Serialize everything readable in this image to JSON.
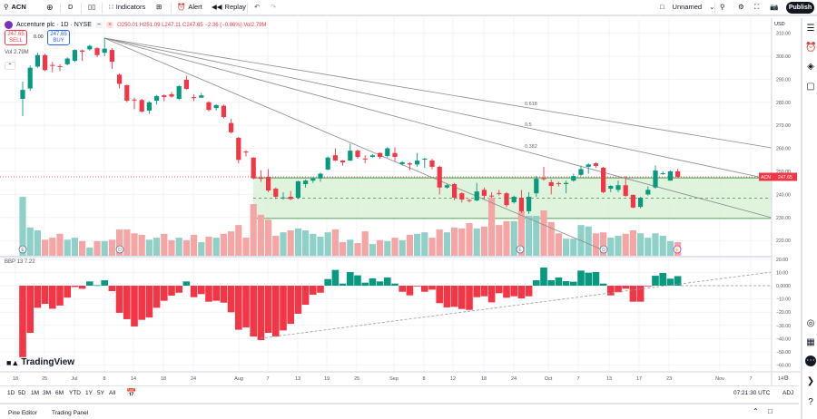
{
  "toolbar": {
    "symbol": "ACN",
    "interval": "D",
    "indicators_label": "Indicators",
    "alert_label": "Alert",
    "replay_label": "Replay",
    "layout_name": "Unnamed",
    "publish_label": "Publish"
  },
  "legend": {
    "title": "Accenture plc · 1D · NYSE",
    "ohlc": "O250.01 H251.09 L247.11 C247.65 −2.36 (−0.86%) Vol2.79M",
    "sell_price": "247.65",
    "sell_label": "SELL",
    "buy_price": "247.65",
    "buy_label": "BUY",
    "spread": "0.00",
    "volume_label": "Vol  2.79M",
    "bbp_label": "BBP 13  7.22"
  },
  "price_scale": {
    "currency": "USD",
    "labels": [
      "310.00",
      "300.00",
      "290.00",
      "280.00",
      "270.00",
      "260.00",
      "250.00",
      "240.00",
      "230.00",
      "220.00"
    ],
    "last_price_symbol": "ACN",
    "last_price": "247.65"
  },
  "bbp_scale": {
    "labels": [
      "20.00",
      "10.00",
      "0.0000",
      "−10.00",
      "−20.00",
      "−30.00",
      "−40.00",
      "−50.00",
      "−60.00"
    ]
  },
  "x_axis": {
    "labels": [
      "18",
      "25",
      "Jul",
      "8",
      "14",
      "18",
      "24",
      "Aug",
      "7",
      "13",
      "19",
      "25",
      "Sep",
      "8",
      "12",
      "18",
      "24",
      "Oct",
      "7",
      "13",
      "17",
      "23",
      "Nov",
      "7",
      "14"
    ]
  },
  "fib_fan": {
    "levels": [
      "0.618",
      "0.5",
      "0.382"
    ]
  },
  "events": [
    "E",
    "D",
    "E",
    "D",
    "⚡"
  ],
  "colors": {
    "up": "#089981",
    "down": "#f23645",
    "volume_up": "#8fd0c8",
    "volume_down": "#f5a6a4",
    "zone": "#d7f0d5",
    "zone_line": "#6aa86a"
  },
  "chart_data": {
    "type": "candlestick",
    "title": "Accenture plc · 1D · NYSE",
    "ylim": [
      215,
      312
    ],
    "candles_ohlc": [
      [
        281.5,
        289,
        274,
        285.4
      ],
      [
        286,
        296,
        285,
        295
      ],
      [
        295.5,
        301.5,
        295,
        300.5
      ],
      [
        300.5,
        301,
        293.5,
        294
      ],
      [
        296.2,
        297.5,
        293,
        295.8
      ],
      [
        295.7,
        296.5,
        293.5,
        295.3
      ],
      [
        296.5,
        299.5,
        296,
        299
      ],
      [
        298,
        303,
        297.5,
        302.7
      ],
      [
        302.5,
        302.8,
        298,
        302
      ],
      [
        303,
        305,
        302.5,
        304.5
      ],
      [
        303.5,
        304,
        299.5,
        300.5
      ],
      [
        301.5,
        308,
        300,
        303.3
      ],
      [
        302.7,
        303.5,
        294.5,
        297.6
      ],
      [
        292,
        292.5,
        286,
        288
      ],
      [
        287.4,
        287.8,
        280,
        280.7
      ],
      [
        281.2,
        282,
        277,
        280.8
      ],
      [
        281,
        281.5,
        275.5,
        276
      ],
      [
        276.4,
        280.5,
        275,
        280
      ],
      [
        280.7,
        283.2,
        279,
        282.7
      ],
      [
        283,
        283.5,
        280.5,
        282.3
      ],
      [
        283.5,
        284.5,
        282,
        282.5
      ],
      [
        281.5,
        287.5,
        281,
        287
      ],
      [
        289.8,
        291.5,
        285.5,
        285.8
      ],
      [
        282.2,
        283.5,
        280.5,
        282
      ],
      [
        282,
        284,
        282,
        283
      ],
      [
        280,
        280.5,
        276,
        276.7
      ],
      [
        277.5,
        279.2,
        276.5,
        278.8
      ],
      [
        278.5,
        279,
        273,
        273.6
      ],
      [
        271,
        272.8,
        266.5,
        267
      ],
      [
        264.6,
        265,
        253.5,
        255
      ],
      [
        258.6,
        259.2,
        256.5,
        258.2
      ],
      [
        256,
        256.2,
        246.5,
        247
      ],
      [
        247.2,
        250.5,
        245.5,
        247
      ],
      [
        247.6,
        251,
        241,
        241.7
      ],
      [
        242.5,
        243,
        238,
        239
      ],
      [
        238.3,
        241,
        237.8,
        238.7
      ],
      [
        239,
        241.5,
        237.5,
        238
      ],
      [
        238.6,
        246,
        238,
        245.7
      ],
      [
        244.5,
        246.5,
        243,
        246
      ],
      [
        246,
        247.5,
        245,
        247
      ],
      [
        247,
        249.5,
        245.5,
        249
      ],
      [
        250.8,
        256.5,
        250.5,
        256
      ],
      [
        257,
        260,
        254.5,
        254.7
      ],
      [
        254.7,
        255,
        252.5,
        253.9
      ],
      [
        254.7,
        262,
        254.5,
        259
      ],
      [
        259,
        259.5,
        255.5,
        256.3
      ],
      [
        255.6,
        257,
        253.5,
        255.4
      ],
      [
        256.3,
        257.5,
        256,
        257
      ],
      [
        258,
        258.2,
        255.5,
        256.3
      ],
      [
        256.7,
        260.5,
        256,
        260
      ],
      [
        258,
        260.5,
        254.5,
        256.3
      ],
      [
        253.2,
        254.5,
        252.5,
        254
      ],
      [
        253.5,
        254,
        250.5,
        253
      ],
      [
        253,
        258,
        252,
        254.7
      ],
      [
        255.3,
        256,
        251.5,
        255.5
      ],
      [
        254.7,
        255.5,
        251,
        252
      ],
      [
        252,
        252.5,
        240,
        243
      ],
      [
        243,
        244.5,
        242.5,
        244
      ],
      [
        244.5,
        245,
        237.5,
        238.6
      ],
      [
        240.5,
        241,
        236.5,
        237.8
      ],
      [
        237.6,
        238,
        236.5,
        237.3
      ],
      [
        237.4,
        245,
        237,
        241.3
      ],
      [
        242,
        243,
        238,
        239.4
      ],
      [
        239.5,
        241,
        238.5,
        239.3
      ],
      [
        240.6,
        242,
        239.5,
        240.4
      ],
      [
        240.5,
        241,
        234.5,
        235.4
      ],
      [
        236.6,
        239.5,
        236,
        239
      ],
      [
        238.6,
        242,
        232,
        232.7
      ],
      [
        232.7,
        241,
        231.5,
        239
      ],
      [
        240.5,
        248,
        239,
        246.8
      ],
      [
        247,
        252,
        246,
        246.8
      ],
      [
        245.3,
        246.5,
        240,
        243.7
      ],
      [
        244.9,
        245.5,
        243.5,
        244.5
      ],
      [
        244.5,
        246,
        240.5,
        245
      ],
      [
        246,
        249,
        245.5,
        248
      ],
      [
        248.5,
        252.5,
        248,
        251
      ],
      [
        252,
        253.5,
        249,
        253
      ],
      [
        253.5,
        254,
        251.5,
        252.4
      ],
      [
        251.6,
        252,
        240.5,
        241
      ],
      [
        242.5,
        244,
        241,
        243.7
      ],
      [
        242,
        246,
        241,
        244
      ],
      [
        244,
        248,
        239,
        239.4
      ],
      [
        239.8,
        240,
        234,
        234.3
      ],
      [
        234.6,
        239,
        234,
        238.6
      ],
      [
        240,
        243.5,
        239.5,
        242
      ],
      [
        243,
        252.5,
        242.5,
        250.4
      ],
      [
        249.2,
        250,
        248.5,
        249.2
      ],
      [
        246,
        250.5,
        246,
        250
      ],
      [
        250.01,
        251.09,
        247.11,
        247.65
      ]
    ],
    "volume_millions": [
      12.1,
      5.8,
      5.2,
      3.3,
      3.7,
      4.5,
      3.3,
      3.7,
      3.0,
      1.7,
      3.0,
      3.0,
      3.3,
      5.4,
      5.4,
      4.6,
      4.3,
      3.3,
      3.7,
      4.5,
      3.2,
      3.7,
      3.2,
      4.3,
      2.8,
      3.9,
      3.7,
      4.5,
      5.0,
      6.3,
      3.7,
      10.6,
      8.4,
      7.4,
      4.1,
      4.8,
      5.2,
      5.6,
      5.2,
      4.5,
      3.9,
      4.8,
      5.4,
      2.8,
      3.3,
      2.6,
      5.0,
      2.4,
      3.2,
      3.0,
      3.7,
      3.2,
      4.3,
      4.5,
      4.8,
      3.7,
      5.4,
      4.8,
      5.8,
      5.6,
      6.7,
      5.6,
      6.0,
      11.9,
      6.3,
      7.1,
      7.1,
      9.1,
      8.2,
      8.2,
      9.3,
      6.9,
      4.6,
      3.5,
      3.5,
      6.3,
      6.0,
      4.6,
      4.8,
      3.7,
      4.1,
      4.5,
      5.2,
      4.6,
      3.7,
      4.6,
      4.1,
      3.0,
      2.79
    ],
    "bbp": [
      -54,
      -35.6,
      -16.7,
      -13.7,
      -17.4,
      -15,
      -9,
      -1,
      -2.3,
      3.2,
      0.4,
      4.1,
      -4.1,
      -20.5,
      -25.3,
      -30.8,
      -25.8,
      -24,
      -16.7,
      -11.4,
      -7.5,
      -5.3,
      3.2,
      -8.7,
      -6.4,
      -12.1,
      -11.4,
      -12.8,
      -20.1,
      -33.3,
      -31.5,
      -38.4,
      -41.1,
      -35.6,
      -38.4,
      -33.8,
      -28.8,
      -21.2,
      -14.4,
      -6.8,
      -5.3,
      5,
      11.9,
      1.6,
      10.3,
      7.8,
      2.3,
      5.5,
      3.2,
      6.2,
      1.6,
      -4.6,
      -7.3,
      -0.5,
      -4.6,
      -3,
      -13.2,
      -16.4,
      -16,
      -17.6,
      -18.3,
      -8.7,
      -8,
      -12.6,
      -5.7,
      -9.1,
      -8,
      -9.6,
      -8,
      4.1,
      13.7,
      4.1,
      6.2,
      3.4,
      3,
      11.4,
      9.8,
      10.3,
      1.6,
      -7.3,
      -5,
      -2.3,
      -12.1,
      -12.1,
      -0.5,
      7.5,
      9.6,
      5.3,
      7.22
    ],
    "zone": {
      "top": 247.2,
      "bottom": 229.6
    }
  },
  "bottom": {
    "ranges": [
      "1D",
      "5D",
      "1M",
      "3M",
      "6M",
      "YTD",
      "1Y",
      "5Y",
      "All"
    ],
    "clock": "07:21:30 UTC",
    "adj": "ADJ",
    "tabs": [
      "Pine Editor",
      "Trading Panel"
    ]
  },
  "logo_text": "TradingView"
}
